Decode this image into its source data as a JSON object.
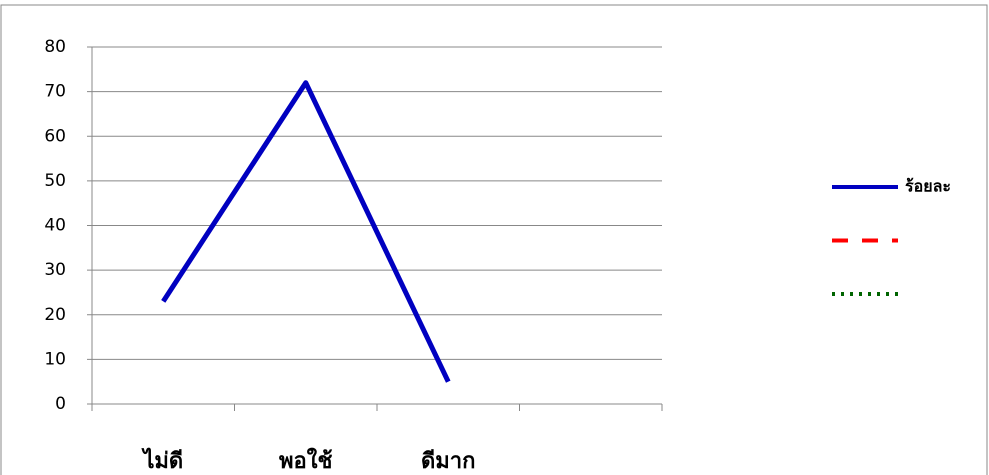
{
  "chart_data": {
    "type": "line",
    "categories": [
      "ไม่ดี",
      "พอใช้",
      "ดีมาก",
      null
    ],
    "series": [
      {
        "name": "ร้อยละ",
        "color": "#0000c0",
        "values": [
          23,
          72,
          5,
          null
        ]
      },
      {
        "color": "#ff0000",
        "values": [
          null,
          null,
          null,
          null
        ]
      },
      {
        "color": "#006400",
        "values": [
          null,
          null,
          null,
          null
        ]
      }
    ],
    "ylim": [
      0,
      80
    ],
    "yticks": [
      0,
      10,
      20,
      30,
      40,
      50,
      60,
      70,
      80
    ],
    "grid": true,
    "legend": "right"
  }
}
